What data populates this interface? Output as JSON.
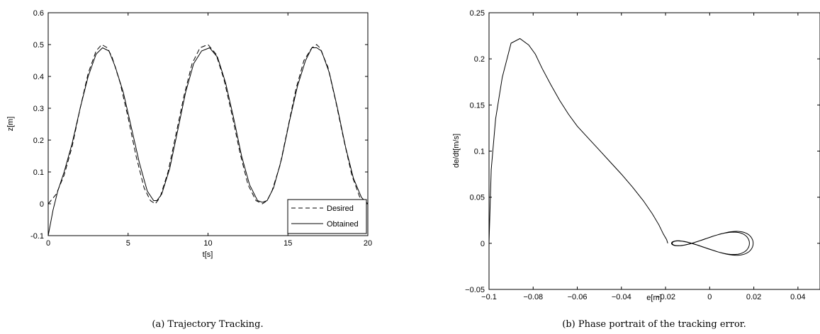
{
  "chart_data": [
    {
      "type": "line",
      "caption": "(a)  Trajectory Tracking.",
      "xlabel": "t[s]",
      "ylabel": "z[m]",
      "xlim": [
        0,
        20
      ],
      "ylim": [
        -0.1,
        0.6
      ],
      "xticks": [
        0,
        5,
        10,
        15,
        20
      ],
      "yticks": [
        -0.1,
        0,
        0.1,
        0.2,
        0.3,
        0.4,
        0.5,
        0.6
      ],
      "grid": false,
      "legend_position": "bottom-right",
      "series": [
        {
          "name": "Desired",
          "style": "dashed",
          "x": [
            0,
            0.5,
            1.0,
            1.5,
            2.0,
            2.5,
            3.0,
            3.35,
            3.7,
            4.0,
            4.5,
            5.0,
            5.5,
            6.0,
            6.4,
            6.7,
            7.0,
            7.5,
            8.0,
            8.5,
            9.0,
            9.5,
            10.0,
            10.5,
            11.0,
            11.5,
            12.0,
            12.5,
            13.0,
            13.4,
            13.7,
            14.0,
            14.5,
            15.0,
            15.5,
            16.0,
            16.5,
            16.8,
            17.0,
            17.5,
            18.0,
            18.5,
            19.0,
            19.5,
            20.0
          ],
          "y": [
            0.0,
            0.03,
            0.09,
            0.18,
            0.3,
            0.41,
            0.48,
            0.5,
            0.49,
            0.46,
            0.38,
            0.27,
            0.15,
            0.05,
            0.01,
            0.0,
            0.02,
            0.1,
            0.22,
            0.34,
            0.44,
            0.49,
            0.5,
            0.47,
            0.39,
            0.28,
            0.16,
            0.06,
            0.01,
            0.0,
            0.01,
            0.04,
            0.12,
            0.24,
            0.36,
            0.45,
            0.49,
            0.5,
            0.49,
            0.43,
            0.32,
            0.2,
            0.09,
            0.02,
            0.0
          ]
        },
        {
          "name": "Obtained",
          "style": "solid",
          "x": [
            0,
            0.15,
            0.3,
            0.6,
            1.0,
            1.5,
            2.0,
            2.5,
            3.0,
            3.4,
            3.8,
            4.2,
            4.7,
            5.2,
            5.7,
            6.2,
            6.6,
            6.8,
            7.1,
            7.6,
            8.1,
            8.6,
            9.1,
            9.6,
            10.1,
            10.6,
            11.1,
            11.6,
            12.1,
            12.6,
            13.1,
            13.4,
            13.7,
            14.1,
            14.6,
            15.1,
            15.6,
            16.1,
            16.5,
            16.8,
            17.1,
            17.6,
            18.1,
            18.6,
            19.1,
            19.6,
            20.0
          ],
          "y": [
            -0.1,
            -0.06,
            -0.02,
            0.04,
            0.1,
            0.19,
            0.3,
            0.4,
            0.47,
            0.49,
            0.48,
            0.43,
            0.35,
            0.24,
            0.13,
            0.04,
            0.01,
            0.01,
            0.03,
            0.11,
            0.23,
            0.35,
            0.44,
            0.48,
            0.49,
            0.46,
            0.38,
            0.27,
            0.15,
            0.06,
            0.01,
            0.005,
            0.01,
            0.05,
            0.14,
            0.26,
            0.37,
            0.45,
            0.49,
            0.49,
            0.48,
            0.41,
            0.3,
            0.18,
            0.08,
            0.02,
            0.0
          ]
        }
      ]
    },
    {
      "type": "line",
      "caption": "(b)  Phase portrait of the tracking error.",
      "xlabel": "e[m]",
      "ylabel": "de/dt[m/s]",
      "xlim": [
        -0.1,
        0.05
      ],
      "ylim": [
        -0.05,
        0.25
      ],
      "xticks": [
        -0.1,
        -0.08,
        -0.06,
        -0.04,
        -0.02,
        0,
        0.02,
        0.04
      ],
      "xticklabels": [
        "−0.1",
        "−0.08",
        "−0.06",
        "−0.04",
        "−0.02",
        "0",
        "0.02",
        "0.04"
      ],
      "yticks": [
        -0.05,
        0,
        0.05,
        0.1,
        0.15,
        0.2,
        0.25
      ],
      "yticklabels": [
        "−0.05",
        "0",
        "0.05",
        "0.1",
        "0.15",
        "0.2",
        "0.25"
      ],
      "grid": false,
      "series": [
        {
          "style": "solid",
          "x": [
            -0.1,
            -0.099,
            -0.097,
            -0.094,
            -0.09,
            -0.086,
            -0.082,
            -0.079,
            -0.076,
            -0.072,
            -0.068,
            -0.064,
            -0.06,
            -0.055,
            -0.05,
            -0.045,
            -0.04,
            -0.035,
            -0.03,
            -0.026,
            -0.023,
            -0.021,
            -0.0195,
            -0.019
          ],
          "y": [
            0.0,
            0.08,
            0.135,
            0.18,
            0.217,
            0.222,
            0.215,
            0.205,
            0.19,
            0.172,
            0.155,
            0.14,
            0.127,
            0.114,
            0.101,
            0.088,
            0.075,
            0.061,
            0.046,
            0.032,
            0.02,
            0.01,
            0.004,
            0.0
          ]
        }
      ]
    }
  ]
}
